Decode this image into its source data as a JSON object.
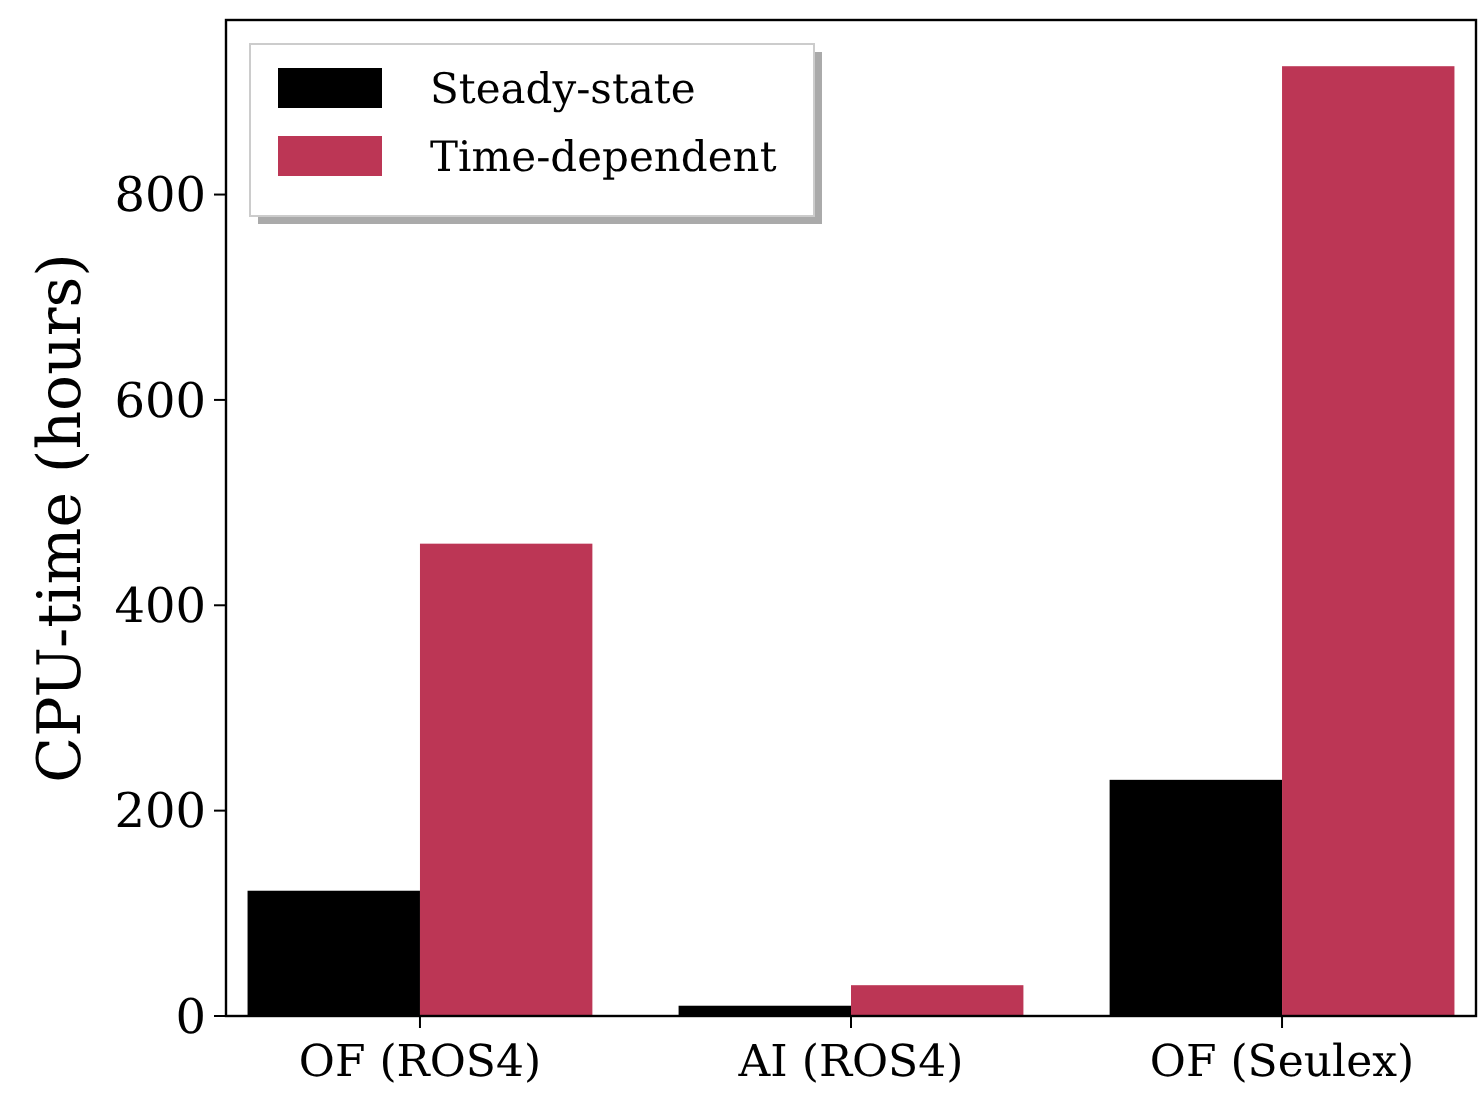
{
  "chart_data": {
    "type": "bar",
    "ylabel": "CPU-time (hours)",
    "categories": [
      "OF (ROS4)",
      "AI (ROS4)",
      "OF (Seulex)"
    ],
    "series": [
      {
        "name": "Steady-state",
        "color": "#000000",
        "values": [
          122,
          10,
          230
        ]
      },
      {
        "name": "Time-dependent",
        "color": "#bc3655",
        "values": [
          460,
          30,
          925
        ]
      }
    ],
    "ylim": [
      0,
      970
    ],
    "yticks": [
      0,
      200,
      400,
      600,
      800
    ],
    "legend": "top left",
    "grid": false
  }
}
